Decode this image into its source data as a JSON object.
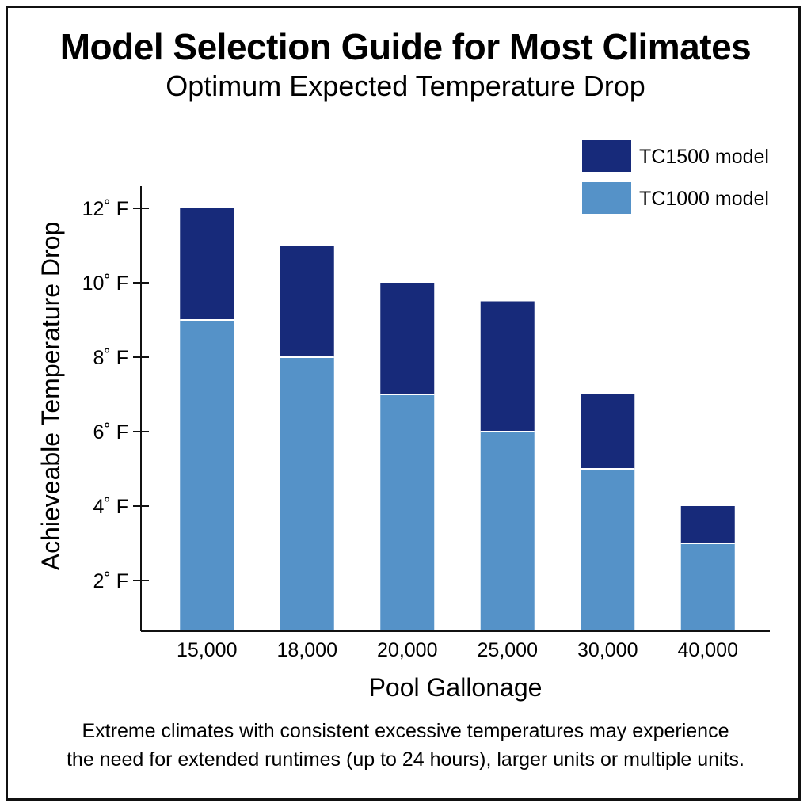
{
  "title": "Model Selection Guide for Most Climates",
  "subtitle": "Optimum Expected Temperature Drop",
  "footnote_line1": "Extreme climates with consistent excessive temperatures may experience",
  "footnote_line2": "the need for extended runtimes (up to 24 hours), larger units or multiple units.",
  "chart_data": {
    "type": "bar",
    "stacked": true,
    "categories": [
      "15,000",
      "18,000",
      "20,000",
      "25,000",
      "30,000",
      "40,000"
    ],
    "series": [
      {
        "name": "TC1000 model",
        "values": [
          9,
          8,
          7,
          6,
          5,
          3
        ],
        "color": "#5592c8"
      },
      {
        "name": "TC1500 model",
        "values": [
          3,
          3,
          3,
          3.5,
          2,
          1
        ],
        "color": "#172a7a"
      }
    ],
    "xlabel": "Pool Gallonage",
    "ylabel": "Achieveable Temperature Drop",
    "y_ticks": [
      2,
      4,
      6,
      8,
      10,
      12
    ],
    "y_tick_labels": [
      "2˚ F",
      "4˚ F",
      "6˚ F",
      "8˚ F",
      "10˚ F",
      "12˚ F"
    ],
    "ylim": [
      0,
      12.5
    ],
    "grid": false,
    "legend_position": "top-right",
    "legend_order": [
      1,
      0
    ]
  }
}
